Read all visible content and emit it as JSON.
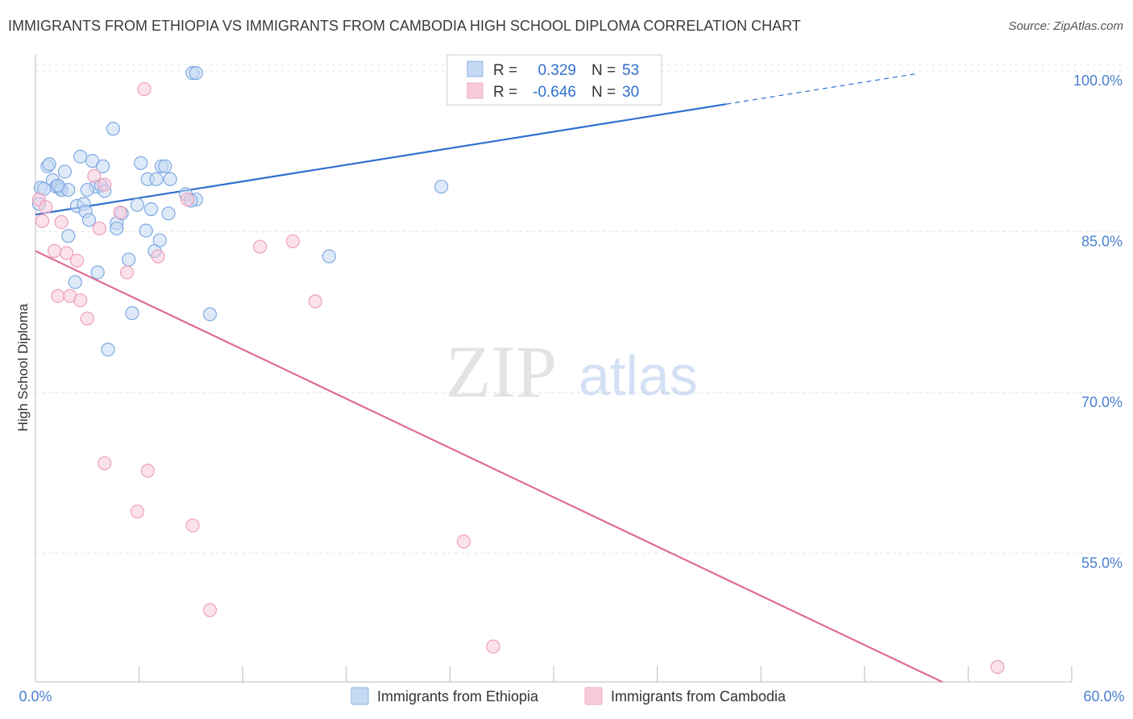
{
  "title": "IMMIGRANTS FROM ETHIOPIA VS IMMIGRANTS FROM CAMBODIA HIGH SCHOOL DIPLOMA CORRELATION CHART",
  "source": "Source: ZipAtlas.com",
  "watermark": {
    "zip": "ZIP",
    "atlas": "atlas"
  },
  "stats": {
    "r_label": "R =",
    "n_label": "N =",
    "ethiopia": {
      "r": "0.329",
      "n": "53",
      "color": "#5b8fd6"
    },
    "cambodia": {
      "r": "-0.646",
      "n": "30",
      "color": "#e87fa3"
    }
  },
  "legend": {
    "ethiopia": "Immigrants from Ethiopia",
    "cambodia": "Immigrants from Cambodia"
  },
  "chart_data": {
    "type": "scatter",
    "title": "IMMIGRANTS FROM ETHIOPIA VS IMMIGRANTS FROM CAMBODIA HIGH SCHOOL DIPLOMA CORRELATION CHART",
    "xlabel": "",
    "ylabel": "High School Diploma",
    "xlim": [
      0,
      60
    ],
    "ylim": [
      43,
      101.5
    ],
    "x_tick_labels": [
      "0.0%",
      "60.0%"
    ],
    "y_ticks": [
      {
        "value": 100,
        "label": "100.0%"
      },
      {
        "value": 85,
        "label": "85.0%"
      },
      {
        "value": 70,
        "label": "70.0%"
      },
      {
        "value": 55,
        "label": "55.0%"
      }
    ],
    "grid": true,
    "series": [
      {
        "name": "Immigrants from Ethiopia",
        "color": "#8ab4ea",
        "points": [
          [
            0.3,
            89.1
          ],
          [
            0.5,
            89.0
          ],
          [
            0.7,
            91.1
          ],
          [
            0.8,
            91.3
          ],
          [
            1.0,
            89.8
          ],
          [
            1.2,
            89.2
          ],
          [
            1.4,
            89.1
          ],
          [
            1.5,
            88.9
          ],
          [
            1.7,
            90.6
          ],
          [
            1.9,
            88.9
          ],
          [
            1.9,
            84.6
          ],
          [
            2.3,
            80.3
          ],
          [
            2.4,
            87.4
          ],
          [
            2.6,
            92.0
          ],
          [
            2.8,
            87.6
          ],
          [
            2.9,
            86.9
          ],
          [
            3.1,
            86.1
          ],
          [
            3.3,
            91.6
          ],
          [
            3.5,
            89.2
          ],
          [
            3.6,
            81.2
          ],
          [
            3.8,
            89.3
          ],
          [
            3.9,
            91.1
          ],
          [
            4.0,
            88.8
          ],
          [
            4.2,
            74.0
          ],
          [
            4.5,
            94.6
          ],
          [
            4.7,
            85.8
          ],
          [
            4.7,
            85.3
          ],
          [
            5.0,
            86.7
          ],
          [
            5.4,
            82.4
          ],
          [
            5.6,
            77.4
          ],
          [
            5.9,
            87.5
          ],
          [
            6.1,
            91.4
          ],
          [
            6.4,
            85.1
          ],
          [
            6.5,
            89.9
          ],
          [
            6.7,
            87.1
          ],
          [
            6.9,
            83.2
          ],
          [
            7.0,
            89.9
          ],
          [
            7.2,
            84.2
          ],
          [
            7.3,
            91.1
          ],
          [
            7.5,
            91.1
          ],
          [
            7.7,
            86.7
          ],
          [
            7.8,
            89.9
          ],
          [
            8.7,
            88.5
          ],
          [
            9.1,
            99.8
          ],
          [
            9.3,
            99.8
          ],
          [
            9.3,
            88.0
          ],
          [
            10.1,
            77.3
          ],
          [
            17.0,
            82.7
          ],
          [
            23.5,
            89.2
          ],
          [
            0.2,
            87.6
          ],
          [
            1.3,
            89.3
          ],
          [
            3.0,
            88.9
          ],
          [
            9.0,
            87.9
          ]
        ]
      },
      {
        "name": "Immigrants from Cambodia",
        "color": "#f2a9c2",
        "points": [
          [
            0.2,
            88.0
          ],
          [
            0.4,
            86.0
          ],
          [
            0.6,
            87.3
          ],
          [
            1.1,
            83.2
          ],
          [
            1.3,
            79.0
          ],
          [
            1.5,
            85.9
          ],
          [
            1.8,
            83.0
          ],
          [
            2.0,
            79.0
          ],
          [
            2.4,
            82.3
          ],
          [
            2.6,
            78.6
          ],
          [
            3.0,
            76.9
          ],
          [
            3.4,
            90.2
          ],
          [
            3.7,
            85.3
          ],
          [
            4.0,
            89.4
          ],
          [
            4.0,
            63.4
          ],
          [
            4.9,
            86.8
          ],
          [
            5.3,
            81.2
          ],
          [
            5.9,
            58.9
          ],
          [
            6.3,
            98.3
          ],
          [
            6.5,
            62.7
          ],
          [
            7.1,
            82.7
          ],
          [
            8.8,
            88.0
          ],
          [
            9.1,
            57.6
          ],
          [
            10.1,
            49.7
          ],
          [
            13.0,
            83.6
          ],
          [
            14.9,
            84.1
          ],
          [
            16.2,
            78.5
          ],
          [
            24.8,
            56.1
          ],
          [
            26.5,
            46.3
          ],
          [
            55.7,
            44.4
          ]
        ]
      }
    ],
    "trend_lines": [
      {
        "series": "Immigrants from Ethiopia",
        "x": [
          0,
          40
        ],
        "y": [
          86.6,
          96.9
        ],
        "dashed_extension_to_x": 51
      },
      {
        "series": "Immigrants from Cambodia",
        "x": [
          0,
          52.5
        ],
        "y": [
          83.2,
          43
        ]
      }
    ]
  }
}
